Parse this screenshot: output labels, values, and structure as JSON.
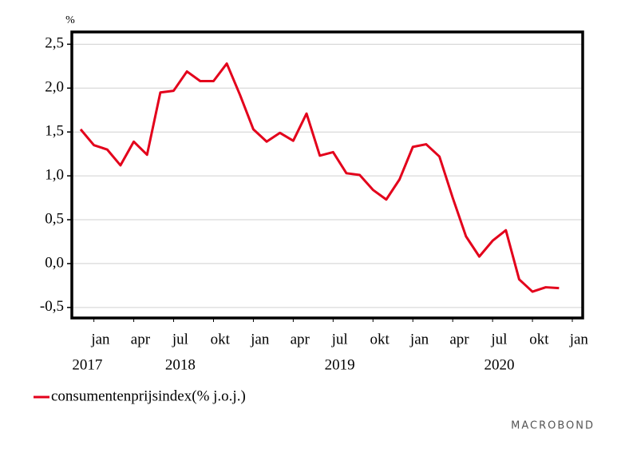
{
  "chart_data": {
    "type": "line",
    "y_unit": "%",
    "series": [
      {
        "name": "consumentenprijsindex(% j.o.j.)",
        "color": "#e3001b",
        "values": [
          1.53,
          1.35,
          1.3,
          1.12,
          1.39,
          1.24,
          1.95,
          1.97,
          2.19,
          2.08,
          2.08,
          2.28,
          1.92,
          1.53,
          1.39,
          1.49,
          1.4,
          1.71,
          1.23,
          1.27,
          1.03,
          1.01,
          0.84,
          0.73,
          0.96,
          1.33,
          1.36,
          1.22,
          0.75,
          0.31,
          0.08,
          0.26,
          0.38,
          -0.18,
          -0.32,
          -0.27,
          -0.28
        ]
      }
    ],
    "xlim": [
      -0.66,
      37.78
    ],
    "xticks": [
      {
        "value": 1,
        "label": "jan"
      },
      {
        "value": 4,
        "label": "apr"
      },
      {
        "value": 7,
        "label": "jul"
      },
      {
        "value": 10,
        "label": "okt"
      },
      {
        "value": 13,
        "label": "jan"
      },
      {
        "value": 16,
        "label": "apr"
      },
      {
        "value": 19,
        "label": "jul"
      },
      {
        "value": 22,
        "label": "okt"
      },
      {
        "value": 25,
        "label": "jan"
      },
      {
        "value": 28,
        "label": "apr"
      },
      {
        "value": 31,
        "label": "jul"
      },
      {
        "value": 34,
        "label": "okt"
      },
      {
        "value": 37,
        "label": "jan"
      }
    ],
    "year_labels": [
      {
        "value": 0,
        "label": "2017"
      },
      {
        "value": 7,
        "label": "2018"
      },
      {
        "value": 19,
        "label": "2019"
      },
      {
        "value": 31,
        "label": "2020"
      }
    ],
    "ylim": [
      -0.62,
      2.64
    ],
    "yticks": [
      {
        "value": 2.5,
        "label": "2,5"
      },
      {
        "value": 2.0,
        "label": "2,0"
      },
      {
        "value": 1.5,
        "label": "1,5"
      },
      {
        "value": 1.0,
        "label": "1,0"
      },
      {
        "value": 0.5,
        "label": "0,5"
      },
      {
        "value": 0.0,
        "label": "0,0"
      },
      {
        "value": -0.5,
        "label": "-0,5"
      }
    ],
    "grid": true,
    "source": "MACROBOND"
  }
}
